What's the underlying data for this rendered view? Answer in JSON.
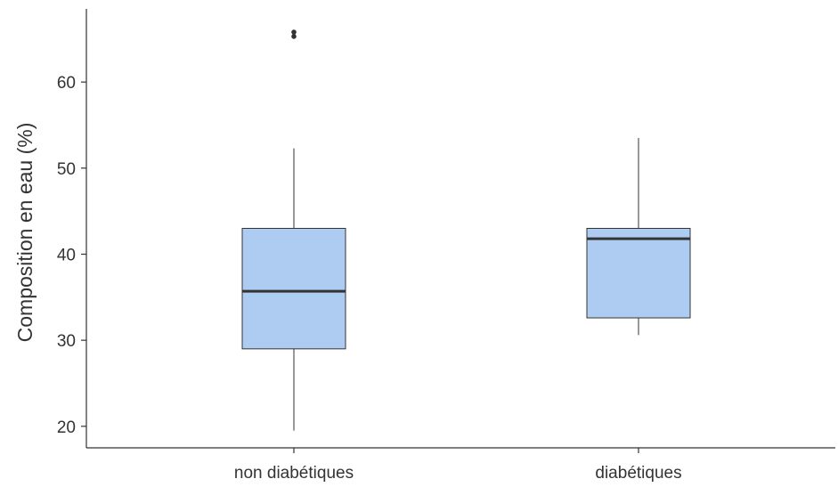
{
  "chart_data": {
    "type": "box",
    "title": "",
    "xlabel": "",
    "ylabel": "Composition en eau (%)",
    "ylim": [
      17.5,
      68.5
    ],
    "yticks": [
      20,
      30,
      40,
      50,
      60
    ],
    "categories": [
      "non diabétiques",
      "diabétiques"
    ],
    "boxes": [
      {
        "category": "non diabétiques",
        "whisker_low": 19.5,
        "q1": 29.0,
        "median": 35.7,
        "q3": 43.0,
        "whisker_high": 52.3,
        "outliers": [
          65.3,
          65.8
        ]
      },
      {
        "category": "diabétiques",
        "whisker_low": 30.6,
        "q1": 32.6,
        "median": 41.8,
        "q3": 43.0,
        "whisker_high": 53.5,
        "outliers": []
      }
    ],
    "grid": false,
    "colors": {
      "box_fill": "#aecbf2",
      "box_stroke": "#333333",
      "median": "#333333",
      "axis": "#333333",
      "outlier": "#333333"
    }
  }
}
